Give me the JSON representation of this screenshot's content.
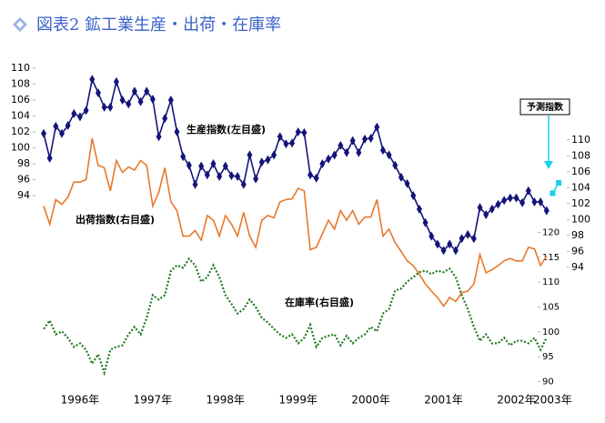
{
  "chart_data": {
    "type": "line",
    "title": "図表2 鉱工業生産・出荷・在庫率",
    "annotation": "予測指数",
    "categories": [
      null,
      null,
      null,
      null,
      null,
      null,
      "1996年",
      null,
      null,
      null,
      null,
      null,
      null,
      null,
      null,
      null,
      null,
      null,
      "1997年",
      null,
      null,
      null,
      null,
      null,
      null,
      null,
      null,
      null,
      null,
      null,
      "1998年",
      null,
      null,
      null,
      null,
      null,
      null,
      null,
      null,
      null,
      null,
      null,
      "1999年",
      null,
      null,
      null,
      null,
      null,
      null,
      null,
      null,
      null,
      null,
      null,
      "2000年",
      null,
      null,
      null,
      null,
      null,
      null,
      null,
      null,
      null,
      null,
      null,
      "2001年",
      null,
      null,
      null,
      null,
      null,
      null,
      null,
      null,
      null,
      null,
      null,
      "2002年",
      null,
      null,
      null,
      null,
      null,
      "2003年",
      null
    ],
    "ylim": [
      70,
      110
    ],
    "yticks": [
      94,
      96,
      98,
      100,
      102,
      104,
      106,
      108,
      110
    ],
    "y2lim": [
      79,
      119
    ],
    "y2ticks": [
      94,
      96,
      98,
      100,
      102,
      104,
      106,
      108,
      110
    ],
    "y3lim": [
      89,
      153
    ],
    "y3ticks": [
      90,
      95,
      100,
      105,
      110,
      115,
      120
    ],
    "series": [
      {
        "name": "生産指数(左目盛)",
        "color": "#14147a",
        "axis": "y",
        "marker": "diamond",
        "values": [
          101.8,
          98.7,
          102.7,
          101.8,
          102.8,
          104.3,
          103.9,
          104.7,
          108.6,
          106.9,
          105.1,
          105.1,
          108.3,
          106.0,
          105.5,
          107.1,
          105.8,
          107.1,
          106.1,
          101.4,
          103.7,
          106.0,
          102.0,
          98.9,
          97.8,
          95.4,
          97.7,
          96.6,
          98.0,
          96.4,
          97.7,
          96.5,
          96.4,
          95.4,
          99.1,
          96.1,
          98.2,
          98.5,
          99.1,
          101.4,
          100.5,
          100.6,
          102.0,
          101.9,
          96.6,
          96.2,
          98.0,
          98.6,
          99.1,
          100.3,
          99.4,
          100.9,
          99.4,
          101.1,
          101.2,
          102.6,
          99.7,
          99.1,
          97.8,
          96.3,
          95.5,
          94.0,
          92.3,
          90.6,
          88.9,
          87.9,
          87.1,
          87.9,
          87.1,
          88.6,
          89.1,
          88.6,
          92.5,
          91.6,
          92.3,
          92.9,
          93.4,
          93.7,
          93.7,
          93.1,
          94.6,
          93.2,
          93.2,
          92.1,
          null,
          null
        ]
      },
      {
        "name": "出荷指数(右目盛)",
        "color": "#e8782a",
        "axis": "y2",
        "values": [
          101.7,
          99.4,
          102.5,
          101.9,
          102.8,
          104.7,
          104.7,
          105.0,
          110.2,
          106.8,
          106.5,
          103.6,
          107.4,
          105.9,
          106.6,
          106.2,
          107.4,
          106.8,
          101.7,
          103.4,
          106.5,
          102.2,
          101.1,
          97.9,
          97.9,
          98.6,
          97.4,
          100.5,
          99.9,
          97.9,
          100.5,
          99.4,
          97.9,
          100.9,
          97.9,
          96.5,
          99.9,
          100.5,
          100.2,
          102.2,
          102.5,
          102.6,
          103.9,
          103.6,
          96.2,
          96.5,
          98.2,
          99.9,
          98.8,
          101.1,
          99.9,
          101.1,
          99.4,
          100.3,
          100.3,
          102.5,
          97.9,
          98.8,
          97.1,
          96.0,
          94.8,
          94.2,
          93.1,
          91.9,
          91.0,
          90.2,
          89.1,
          90.2,
          89.7,
          90.8,
          91.0,
          91.9,
          95.6,
          93.3,
          93.7,
          94.2,
          94.8,
          95.1,
          94.8,
          94.8,
          96.5,
          96.3,
          94.2,
          95.4,
          null,
          null
        ]
      },
      {
        "name": "在庫率(右目盛)",
        "color": "#1f7a1f",
        "axis": "y3",
        "dash": true,
        "values": [
          100.6,
          102.3,
          99.5,
          100.1,
          98.8,
          97.0,
          97.7,
          96.4,
          93.6,
          95.5,
          91.8,
          96.4,
          97.0,
          97.3,
          99.5,
          101.0,
          99.5,
          102.8,
          107.4,
          106.5,
          107.4,
          112.3,
          113.4,
          112.9,
          114.7,
          113.4,
          110.1,
          111.0,
          113.4,
          111.0,
          107.4,
          105.6,
          103.7,
          104.6,
          106.5,
          105.0,
          102.8,
          101.9,
          100.6,
          99.5,
          98.8,
          99.5,
          97.7,
          98.8,
          101.4,
          97.0,
          98.8,
          99.2,
          99.5,
          97.3,
          99.2,
          97.7,
          98.8,
          99.5,
          101.0,
          100.1,
          103.7,
          104.6,
          108.3,
          108.7,
          110.1,
          111.0,
          112.0,
          112.3,
          111.6,
          112.3,
          112.0,
          112.7,
          111.0,
          107.4,
          104.6,
          101.0,
          98.2,
          99.5,
          97.7,
          97.7,
          98.8,
          97.3,
          98.2,
          98.2,
          97.7,
          98.8,
          96.4,
          98.8,
          null,
          null
        ]
      },
      {
        "color": "#18d0ee",
        "axis": "y",
        "marker": "square",
        "values": [
          null,
          null,
          null,
          null,
          null,
          null,
          null,
          null,
          null,
          null,
          null,
          null,
          null,
          null,
          null,
          null,
          null,
          null,
          null,
          null,
          null,
          null,
          null,
          null,
          null,
          null,
          null,
          null,
          null,
          null,
          null,
          null,
          null,
          null,
          null,
          null,
          null,
          null,
          null,
          null,
          null,
          null,
          null,
          null,
          null,
          null,
          null,
          null,
          null,
          null,
          null,
          null,
          null,
          null,
          null,
          null,
          null,
          null,
          null,
          null,
          null,
          null,
          null,
          null,
          null,
          null,
          null,
          null,
          null,
          null,
          null,
          null,
          null,
          null,
          null,
          null,
          null,
          null,
          null,
          null,
          null,
          null,
          null,
          null,
          94.3,
          95.6
        ]
      }
    ]
  }
}
